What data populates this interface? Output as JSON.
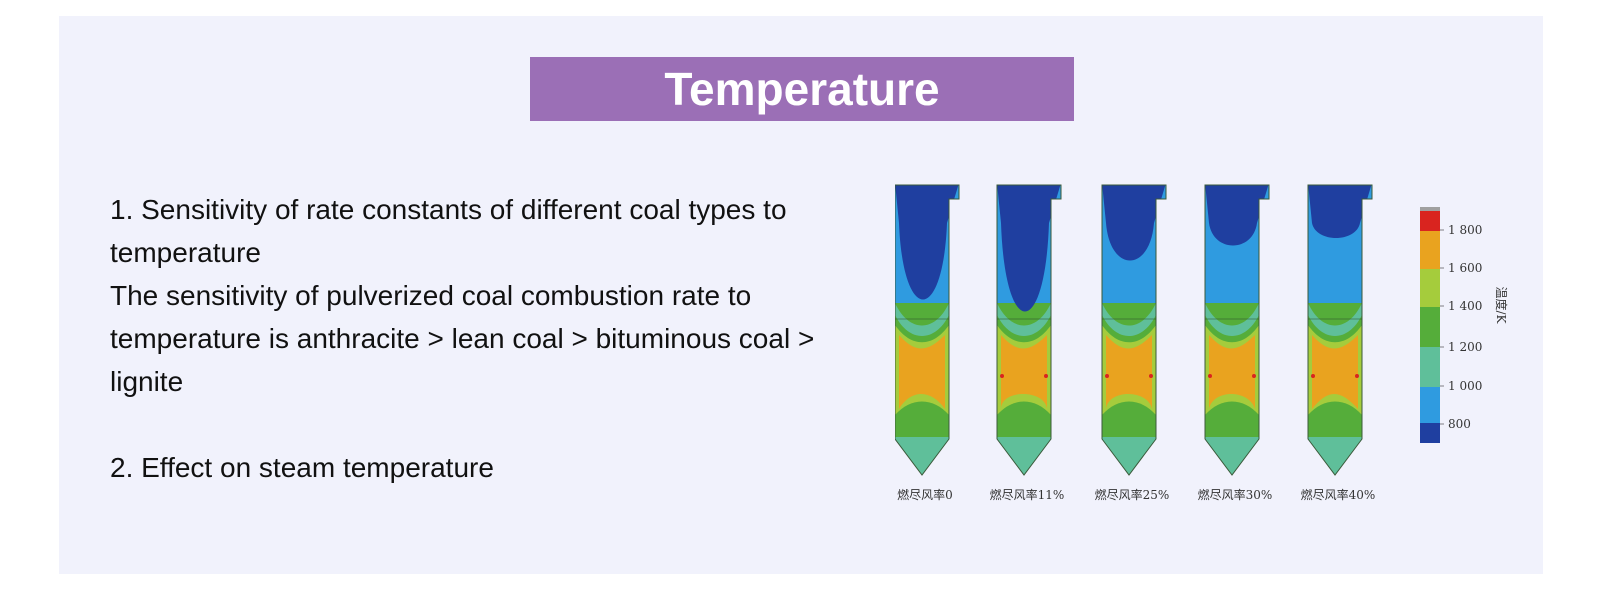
{
  "title": "Temperature",
  "points": [
    {
      "heading": "1. Sensitivity of rate constants of different coal types to temperature",
      "detail": "The sensitivity of pulverized coal combustion rate to temperature is anthracite > lean coal > bituminous coal > lignite"
    },
    {
      "heading": "2. Effect on steam temperature",
      "detail": ""
    }
  ],
  "figure": {
    "furnace_labels": [
      "燃尽风率0",
      "燃尽风率11%",
      "燃尽风率25%",
      "燃尽风率30%",
      "燃尽风率40%"
    ],
    "scale_title": "温度/K",
    "scale_ticks": [
      "1 800",
      "1 600",
      "1 400",
      "1 200",
      "1 000",
      "800"
    ],
    "colors": {
      "deep_blue": "#1f3fa0",
      "light_blue": "#2f9be0",
      "teal": "#5fbf9a",
      "green": "#55ad3a",
      "yellow_green": "#a5cc3c",
      "orange": "#e9a31f",
      "red": "#d9241f",
      "grey": "#a0a0a0",
      "accent_purple": "#9b6fb6"
    }
  }
}
